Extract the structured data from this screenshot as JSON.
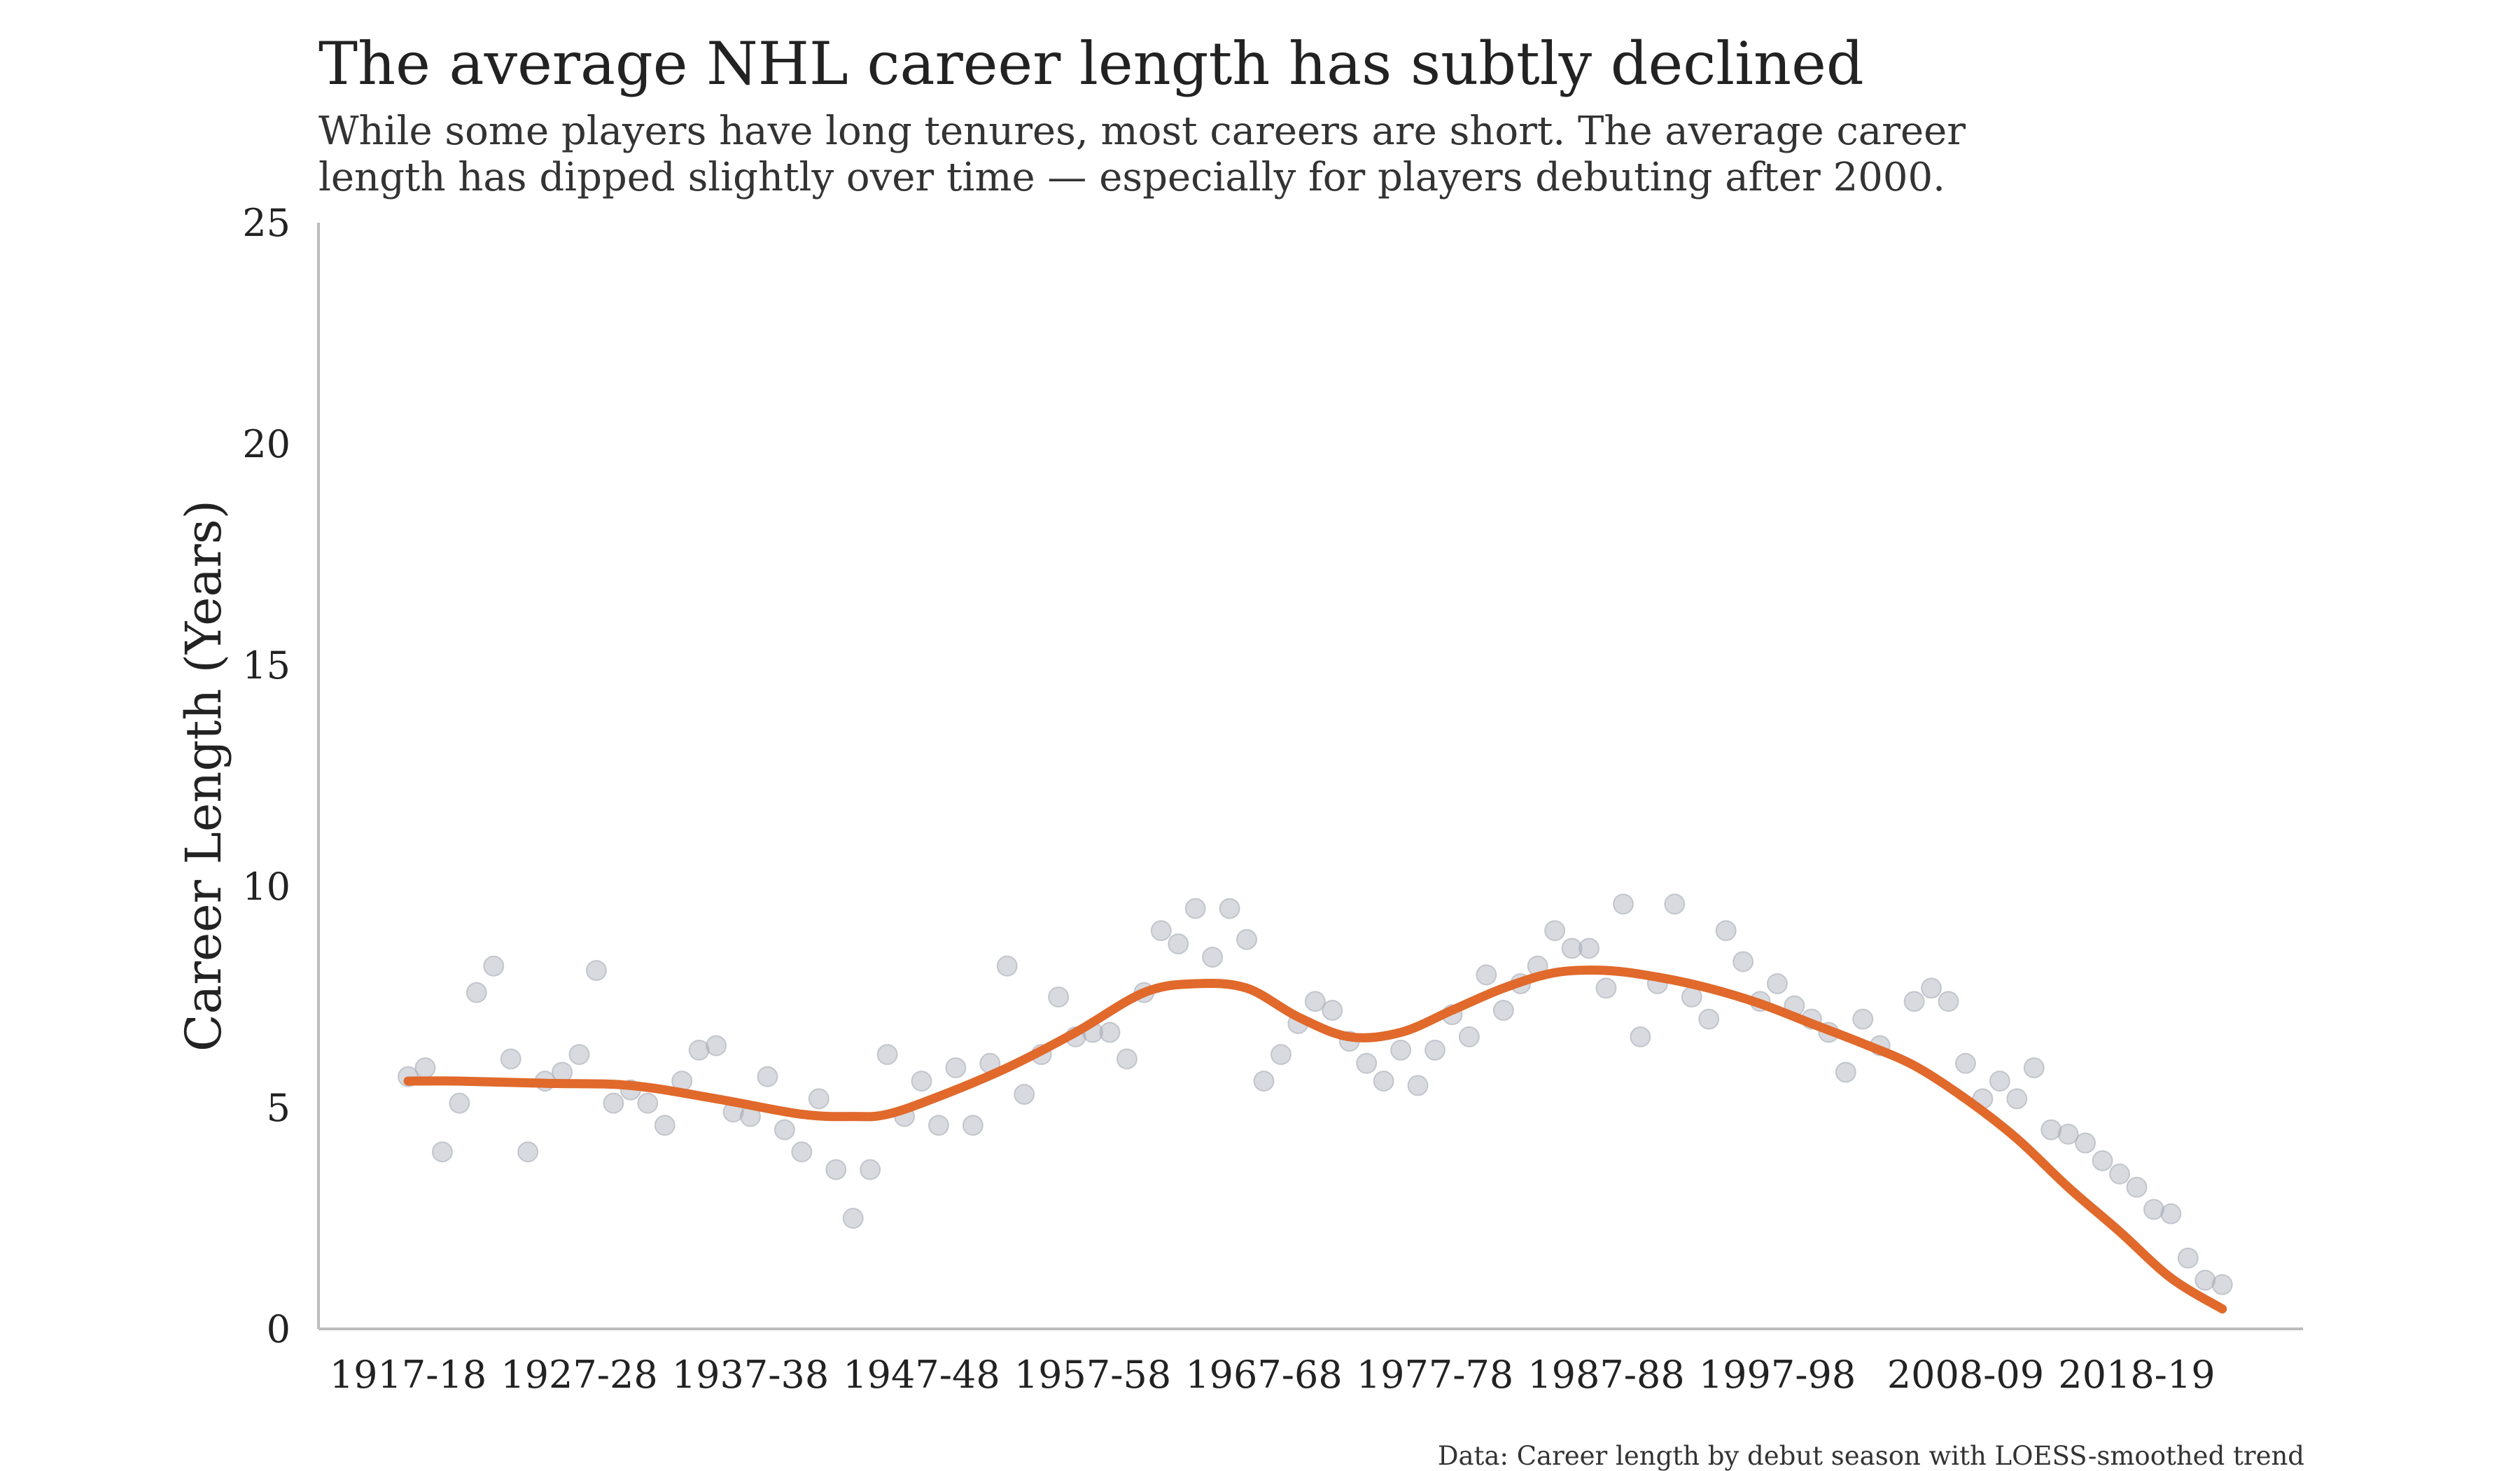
{
  "header": {
    "title": "The average NHL career length has subtly declined",
    "subtitle_line1": "While some players have long tenures, most careers are short. The average career",
    "subtitle_line2": "length has dipped slightly over time — especially for players debuting after 2000."
  },
  "caption": "Data: Career length by debut season with LOESS-smoothed trend",
  "colors": {
    "trend": "#E0692B",
    "points": "#A9ADB8",
    "axis": "#BDBDBD",
    "text": "#222222"
  },
  "chart_data": {
    "type": "scatter",
    "title": "The average NHL career length has subtly declined",
    "subtitle": "While some players have long tenures, most careers are short. The average career length has dipped slightly over time — especially for players debuting after 2000.",
    "xlabel": "",
    "ylabel": "Career Length (Years)",
    "ylim": [
      0,
      25
    ],
    "yticks": [
      0,
      5,
      10,
      15,
      20,
      25
    ],
    "xticks": [
      "1917-18",
      "1927-28",
      "1937-38",
      "1947-48",
      "1957-58",
      "1967-68",
      "1977-78",
      "1987-88",
      "1997-98",
      "2008-09",
      "2018-19"
    ],
    "xtick_years": [
      1917,
      1927,
      1937,
      1947,
      1957,
      1967,
      1977,
      1987,
      1997,
      2008,
      2018
    ],
    "x_range_years": [
      1917,
      2027
    ],
    "grid": false,
    "series": [
      {
        "kind": "points",
        "x": [
          1917,
          1918,
          1919,
          1920,
          1921,
          1922,
          1923,
          1924,
          1925,
          1926,
          1927,
          1928,
          1929,
          1930,
          1931,
          1932,
          1933,
          1934,
          1935,
          1936,
          1937,
          1938,
          1939,
          1940,
          1941,
          1942,
          1943,
          1944,
          1945,
          1946,
          1947,
          1948,
          1949,
          1950,
          1951,
          1952,
          1953,
          1954,
          1955,
          1956,
          1957,
          1958,
          1959,
          1960,
          1961,
          1962,
          1963,
          1964,
          1965,
          1966,
          1967,
          1968,
          1969,
          1970,
          1971,
          1972,
          1973,
          1974,
          1975,
          1976,
          1977,
          1978,
          1979,
          1980,
          1981,
          1982,
          1983,
          1984,
          1985,
          1986,
          1987,
          1988,
          1989,
          1990,
          1991,
          1992,
          1993,
          1994,
          1995,
          1996,
          1997,
          1998,
          1999,
          2000,
          2001,
          2002,
          2003,
          2005,
          2006,
          2007,
          2008,
          2009,
          2010,
          2011,
          2012,
          2013,
          2014,
          2015,
          2016,
          2017,
          2018,
          2019,
          2020,
          2021,
          2022,
          2023
        ],
        "y": [
          5.7,
          5.9,
          4.0,
          5.1,
          7.6,
          8.2,
          6.1,
          4.0,
          5.6,
          5.8,
          6.2,
          8.1,
          5.1,
          5.4,
          5.1,
          4.6,
          5.6,
          6.3,
          6.4,
          4.9,
          4.8,
          5.7,
          4.5,
          4.0,
          5.2,
          3.6,
          2.5,
          3.6,
          6.2,
          4.8,
          5.6,
          4.6,
          5.9,
          4.6,
          6.0,
          8.2,
          5.3,
          6.2,
          7.5,
          6.6,
          6.7,
          6.7,
          6.1,
          7.6,
          9.0,
          8.7,
          9.5,
          8.4,
          9.5,
          8.8,
          5.6,
          6.2,
          6.9,
          7.4,
          7.2,
          6.5,
          6.0,
          5.6,
          6.3,
          5.5,
          6.3,
          7.1,
          6.6,
          8.0,
          7.2,
          7.8,
          8.2,
          9.0,
          8.6,
          8.6,
          7.7,
          9.6,
          6.6,
          7.8,
          9.6,
          7.5,
          7.0,
          9.0,
          8.3,
          7.4,
          7.8,
          7.3,
          7.0,
          6.7,
          5.8,
          7.0,
          6.4,
          7.4,
          7.7,
          7.4,
          6.0,
          5.2,
          5.6,
          5.2,
          5.9,
          4.5,
          4.4,
          4.2,
          3.8,
          3.5,
          3.2,
          2.7,
          2.6,
          1.6,
          1.1,
          1.0
        ]
      },
      {
        "kind": "trend",
        "name": "LOESS-smoothed trend",
        "x": [
          1917,
          1920,
          1925,
          1930,
          1935,
          1940,
          1943,
          1945,
          1948,
          1952,
          1956,
          1960,
          1963,
          1966,
          1969,
          1972,
          1975,
          1978,
          1981,
          1984,
          1987,
          1990,
          1993,
          1996,
          1999,
          2002,
          2005,
          2008,
          2011,
          2014,
          2017,
          2020,
          2023
        ],
        "y": [
          5.6,
          5.6,
          5.55,
          5.5,
          5.2,
          4.85,
          4.8,
          4.85,
          5.25,
          5.9,
          6.7,
          7.6,
          7.8,
          7.7,
          7.05,
          6.6,
          6.7,
          7.2,
          7.7,
          8.05,
          8.1,
          7.95,
          7.7,
          7.35,
          6.9,
          6.45,
          5.95,
          5.2,
          4.3,
          3.2,
          2.2,
          1.15,
          0.45
        ]
      }
    ]
  }
}
